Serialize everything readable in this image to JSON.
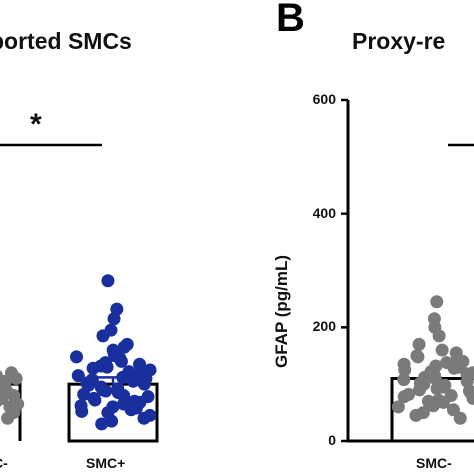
{
  "panel_a": {
    "title": "ported SMCs"
  },
  "panel_b": {
    "letter": "B",
    "title": "Proxy-re"
  },
  "significance": "*",
  "chart_data": [
    {
      "type": "bar",
      "title": "ported SMCs",
      "categories": [
        "SMC+"
      ],
      "values": [
        100
      ],
      "error": [
        12
      ],
      "ylim": [
        0,
        600
      ],
      "points": {
        "SMC+": [
          282,
          232,
          215,
          195,
          185,
          170,
          165,
          160,
          155,
          150,
          148,
          145,
          140,
          138,
          135,
          132,
          130,
          128,
          125,
          122,
          120,
          118,
          115,
          112,
          110,
          108,
          105,
          102,
          100,
          98,
          95,
          92,
          90,
          88,
          85,
          82,
          80,
          78,
          75,
          72,
          70,
          68,
          65,
          62,
          60,
          58,
          55,
          52,
          50,
          45,
          40,
          35,
          30
        ]
      },
      "colors": {
        "SMC+": "#1a2f9e",
        "SMC-": "#7a7a7a"
      }
    },
    {
      "type": "bar",
      "title": "Proxy-re",
      "ylabel": "GFAP (pg/mL)",
      "categories": [
        "SMC-"
      ],
      "values": [
        110
      ],
      "ylim": [
        0,
        600
      ],
      "yticks": [
        0,
        200,
        400,
        600
      ],
      "points": {
        "SMC-": [
          245,
          215,
          200,
          185,
          170,
          160,
          155,
          150,
          148,
          145,
          140,
          138,
          135,
          132,
          130,
          128,
          125,
          122,
          120,
          118,
          115,
          112,
          110,
          108,
          105,
          102,
          100,
          98,
          95,
          92,
          90,
          88,
          85,
          82,
          80,
          78,
          75,
          72,
          70,
          68,
          65,
          62,
          60,
          55,
          50,
          45,
          40
        ]
      },
      "colors": {
        "SMC-": "#7a7a7a"
      }
    }
  ]
}
